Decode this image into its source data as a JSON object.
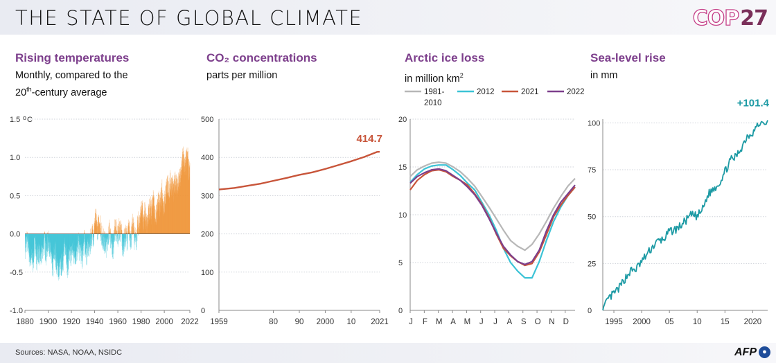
{
  "header": {
    "title": "THE STATE OF GLOBAL CLIMATE",
    "logo_text": "COP",
    "logo_number": "27"
  },
  "footer": {
    "sources": "Sources: NASA, NOAA, NSIDC",
    "agency": "AFP"
  },
  "colors": {
    "accent_title": "#7d3f8c",
    "warm": "#f0963a",
    "cold": "#3cc3d6",
    "co2": "#c8553a",
    "base_1981_2010": "#b7b7b7",
    "y2012": "#3cc3d6",
    "y2021": "#c8553a",
    "y2022": "#7d3f8c",
    "sea": "#1c9aa4"
  },
  "panels": [
    {
      "title": "Rising temperatures",
      "subtitle_line1": "Monthly, compared to the",
      "subtitle_line2_pre": "20",
      "subtitle_line2_sup": "th",
      "subtitle_line2_post": "-century average"
    },
    {
      "title": "CO₂ concentrations",
      "subtitle": "parts per million"
    },
    {
      "title": "Arctic ice loss",
      "subtitle_pre": "in million km",
      "subtitle_sup": "2"
    },
    {
      "title": "Sea-level rise",
      "subtitle": "in mm"
    }
  ],
  "chart_data": [
    {
      "type": "bar",
      "title": "Rising temperatures",
      "unit": "°C",
      "x_ticks": [
        "1880",
        "1900",
        "1920",
        "1940",
        "1960",
        "1980",
        "2000",
        "2022"
      ],
      "y_ticks": [
        "1.5",
        "1.0",
        "0.5",
        "0.0",
        "-0.5",
        "-1.0"
      ],
      "ylim": [
        -1.0,
        1.5
      ],
      "xlim": [
        1880,
        2022
      ],
      "annual_anomaly": [
        [
          1880,
          -0.17
        ],
        [
          1881,
          -0.09
        ],
        [
          1882,
          -0.11
        ],
        [
          1883,
          -0.17
        ],
        [
          1884,
          -0.28
        ],
        [
          1885,
          -0.33
        ],
        [
          1886,
          -0.31
        ],
        [
          1887,
          -0.36
        ],
        [
          1888,
          -0.18
        ],
        [
          1889,
          -0.11
        ],
        [
          1890,
          -0.35
        ],
        [
          1891,
          -0.22
        ],
        [
          1892,
          -0.27
        ],
        [
          1893,
          -0.31
        ],
        [
          1894,
          -0.3
        ],
        [
          1895,
          -0.22
        ],
        [
          1896,
          -0.11
        ],
        [
          1897,
          -0.11
        ],
        [
          1898,
          -0.27
        ],
        [
          1899,
          -0.17
        ],
        [
          1900,
          -0.08
        ],
        [
          1901,
          -0.15
        ],
        [
          1902,
          -0.28
        ],
        [
          1903,
          -0.37
        ],
        [
          1904,
          -0.47
        ],
        [
          1905,
          -0.26
        ],
        [
          1906,
          -0.22
        ],
        [
          1907,
          -0.39
        ],
        [
          1908,
          -0.43
        ],
        [
          1909,
          -0.48
        ],
        [
          1910,
          -0.43
        ],
        [
          1911,
          -0.44
        ],
        [
          1912,
          -0.36
        ],
        [
          1913,
          -0.34
        ],
        [
          1914,
          -0.15
        ],
        [
          1915,
          -0.14
        ],
        [
          1916,
          -0.36
        ],
        [
          1917,
          -0.46
        ],
        [
          1918,
          -0.3
        ],
        [
          1919,
          -0.27
        ],
        [
          1920,
          -0.27
        ],
        [
          1921,
          -0.19
        ],
        [
          1922,
          -0.28
        ],
        [
          1923,
          -0.26
        ],
        [
          1924,
          -0.27
        ],
        [
          1925,
          -0.22
        ],
        [
          1926,
          -0.1
        ],
        [
          1927,
          -0.21
        ],
        [
          1928,
          -0.2
        ],
        [
          1929,
          -0.36
        ],
        [
          1930,
          -0.16
        ],
        [
          1931,
          -0.09
        ],
        [
          1932,
          -0.16
        ],
        [
          1933,
          -0.29
        ],
        [
          1934,
          -0.13
        ],
        [
          1935,
          -0.2
        ],
        [
          1936,
          -0.15
        ],
        [
          1937,
          -0.03
        ],
        [
          1938,
          0.0
        ],
        [
          1939,
          -0.02
        ],
        [
          1940,
          0.13
        ],
        [
          1941,
          0.19
        ],
        [
          1942,
          0.07
        ],
        [
          1943,
          0.09
        ],
        [
          1944,
          0.2
        ],
        [
          1945,
          0.09
        ],
        [
          1946,
          -0.07
        ],
        [
          1947,
          -0.03
        ],
        [
          1948,
          -0.11
        ],
        [
          1949,
          -0.11
        ],
        [
          1950,
          -0.17
        ],
        [
          1951,
          -0.07
        ],
        [
          1952,
          0.01
        ],
        [
          1953,
          0.08
        ],
        [
          1954,
          -0.13
        ],
        [
          1955,
          -0.14
        ],
        [
          1956,
          -0.19
        ],
        [
          1957,
          0.05
        ],
        [
          1958,
          0.06
        ],
        [
          1959,
          0.03
        ],
        [
          1960,
          -0.03
        ],
        [
          1961,
          0.06
        ],
        [
          1962,
          0.03
        ],
        [
          1963,
          0.05
        ],
        [
          1964,
          -0.2
        ],
        [
          1965,
          -0.11
        ],
        [
          1966,
          -0.06
        ],
        [
          1967,
          -0.02
        ],
        [
          1968,
          -0.08
        ],
        [
          1969,
          0.05
        ],
        [
          1970,
          0.03
        ],
        [
          1971,
          -0.08
        ],
        [
          1972,
          0.01
        ],
        [
          1973,
          0.16
        ],
        [
          1974,
          -0.07
        ],
        [
          1975,
          -0.01
        ],
        [
          1976,
          -0.1
        ],
        [
          1977,
          0.18
        ],
        [
          1978,
          0.07
        ],
        [
          1979,
          0.16
        ],
        [
          1980,
          0.26
        ],
        [
          1981,
          0.32
        ],
        [
          1982,
          0.14
        ],
        [
          1983,
          0.31
        ],
        [
          1984,
          0.16
        ],
        [
          1985,
          0.12
        ],
        [
          1986,
          0.18
        ],
        [
          1987,
          0.32
        ],
        [
          1988,
          0.39
        ],
        [
          1989,
          0.27
        ],
        [
          1990,
          0.45
        ],
        [
          1991,
          0.41
        ],
        [
          1992,
          0.22
        ],
        [
          1993,
          0.23
        ],
        [
          1994,
          0.32
        ],
        [
          1995,
          0.45
        ],
        [
          1996,
          0.33
        ],
        [
          1997,
          0.46
        ],
        [
          1998,
          0.61
        ],
        [
          1999,
          0.38
        ],
        [
          2000,
          0.39
        ],
        [
          2001,
          0.54
        ],
        [
          2002,
          0.63
        ],
        [
          2003,
          0.62
        ],
        [
          2004,
          0.53
        ],
        [
          2005,
          0.68
        ],
        [
          2006,
          0.64
        ],
        [
          2007,
          0.66
        ],
        [
          2008,
          0.54
        ],
        [
          2009,
          0.65
        ],
        [
          2010,
          0.72
        ],
        [
          2011,
          0.61
        ],
        [
          2012,
          0.65
        ],
        [
          2013,
          0.68
        ],
        [
          2014,
          0.75
        ],
        [
          2015,
          0.9
        ],
        [
          2016,
          1.01
        ],
        [
          2017,
          0.92
        ],
        [
          2018,
          0.85
        ],
        [
          2019,
          0.98
        ],
        [
          2020,
          1.02
        ],
        [
          2021,
          0.85
        ],
        [
          2022,
          0.89
        ]
      ]
    },
    {
      "type": "line",
      "title": "CO₂ concentrations",
      "unit": "parts per million",
      "x_ticks": [
        "1959",
        "80",
        "90",
        "2000",
        "10",
        "2021"
      ],
      "y_ticks": [
        "500",
        "400",
        "300",
        "200",
        "100",
        "0"
      ],
      "xlim": [
        1959,
        2021
      ],
      "ylim": [
        0,
        500
      ],
      "end_label": "414.7",
      "points": [
        [
          1959,
          315.98
        ],
        [
          1965,
          320.04
        ],
        [
          1970,
          325.68
        ],
        [
          1975,
          331.11
        ],
        [
          1980,
          338.76
        ],
        [
          1985,
          346.12
        ],
        [
          1990,
          354.39
        ],
        [
          1995,
          360.82
        ],
        [
          2000,
          369.71
        ],
        [
          2005,
          379.8
        ],
        [
          2010,
          389.9
        ],
        [
          2015,
          401.01
        ],
        [
          2020,
          414.24
        ],
        [
          2021,
          414.7
        ]
      ]
    },
    {
      "type": "line",
      "title": "Arctic ice loss",
      "unit": "million km²",
      "x_ticks": [
        "J",
        "F",
        "M",
        "A",
        "M",
        "J",
        "J",
        "A",
        "S",
        "O",
        "N",
        "D"
      ],
      "y_ticks": [
        "20",
        "15",
        "10",
        "5",
        "0"
      ],
      "ylim": [
        0,
        20
      ],
      "legend": "top",
      "series": [
        {
          "name": "1981-2010",
          "values": [
            [
              0,
              14.0
            ],
            [
              0.5,
              14.7
            ],
            [
              1,
              15.1
            ],
            [
              1.5,
              15.4
            ],
            [
              2,
              15.5
            ],
            [
              2.5,
              15.4
            ],
            [
              3,
              15.0
            ],
            [
              3.5,
              14.5
            ],
            [
              4,
              13.8
            ],
            [
              4.5,
              13.0
            ],
            [
              5,
              11.9
            ],
            [
              5.5,
              10.8
            ],
            [
              6,
              9.6
            ],
            [
              6.5,
              8.4
            ],
            [
              7,
              7.3
            ],
            [
              7.5,
              6.7
            ],
            [
              8,
              6.3
            ],
            [
              8.5,
              6.9
            ],
            [
              9,
              8.0
            ],
            [
              9.5,
              9.3
            ],
            [
              10,
              10.7
            ],
            [
              10.5,
              11.9
            ],
            [
              11,
              13.0
            ],
            [
              11.5,
              13.8
            ]
          ]
        },
        {
          "name": "2012",
          "values": [
            [
              0,
              13.4
            ],
            [
              0.5,
              14.2
            ],
            [
              1,
              14.8
            ],
            [
              1.5,
              15.1
            ],
            [
              2,
              15.2
            ],
            [
              2.5,
              15.2
            ],
            [
              3,
              14.7
            ],
            [
              3.5,
              14.1
            ],
            [
              4,
              13.3
            ],
            [
              4.5,
              12.6
            ],
            [
              5,
              11.3
            ],
            [
              5.5,
              10.0
            ],
            [
              6,
              8.4
            ],
            [
              6.5,
              6.5
            ],
            [
              7,
              5.0
            ],
            [
              7.5,
              4.1
            ],
            [
              8,
              3.4
            ],
            [
              8.5,
              3.4
            ],
            [
              9,
              5.1
            ],
            [
              9.5,
              7.3
            ],
            [
              10,
              9.3
            ],
            [
              10.5,
              10.8
            ],
            [
              11,
              12.0
            ],
            [
              11.5,
              12.9
            ]
          ]
        },
        {
          "name": "2021",
          "values": [
            [
              0,
              12.6
            ],
            [
              0.5,
              13.6
            ],
            [
              1,
              14.2
            ],
            [
              1.5,
              14.6
            ],
            [
              2,
              14.7
            ],
            [
              2.5,
              14.5
            ],
            [
              3,
              14.0
            ],
            [
              3.5,
              13.6
            ],
            [
              4,
              13.1
            ],
            [
              4.5,
              12.2
            ],
            [
              5,
              11.1
            ],
            [
              5.5,
              9.7
            ],
            [
              6,
              8.0
            ],
            [
              6.5,
              6.5
            ],
            [
              7,
              5.7
            ],
            [
              7.5,
              5.1
            ],
            [
              8,
              4.7
            ],
            [
              8.5,
              4.9
            ],
            [
              9,
              6.1
            ],
            [
              9.5,
              7.9
            ],
            [
              10,
              9.8
            ],
            [
              10.5,
              11.0
            ],
            [
              11,
              12.0
            ],
            [
              11.5,
              12.9
            ]
          ]
        },
        {
          "name": "2022",
          "values": [
            [
              0,
              13.3
            ],
            [
              0.5,
              14.0
            ],
            [
              1,
              14.4
            ],
            [
              1.5,
              14.7
            ],
            [
              2,
              14.8
            ],
            [
              2.5,
              14.6
            ],
            [
              3,
              14.1
            ],
            [
              3.5,
              13.6
            ],
            [
              4,
              12.9
            ],
            [
              4.5,
              12.1
            ],
            [
              5,
              11.0
            ],
            [
              5.5,
              9.6
            ],
            [
              6,
              8.1
            ],
            [
              6.5,
              6.7
            ],
            [
              7,
              5.8
            ],
            [
              7.5,
              5.1
            ],
            [
              8,
              4.8
            ],
            [
              8.5,
              5.1
            ],
            [
              9,
              6.3
            ],
            [
              9.5,
              8.3
            ],
            [
              10,
              10.0
            ],
            [
              10.5,
              11.3
            ],
            [
              11,
              12.2
            ],
            [
              11.5,
              13.1
            ]
          ]
        }
      ]
    },
    {
      "type": "line",
      "title": "Sea-level rise",
      "unit": "mm",
      "x_ticks": [
        "1995",
        "2000",
        "05",
        "10",
        "15",
        "2020"
      ],
      "y_ticks": [
        "100",
        "75",
        "50",
        "25",
        "0"
      ],
      "xlim": [
        1993,
        2022.7
      ],
      "ylim": [
        0,
        102
      ],
      "end_label": "+101.4",
      "points": [
        [
          1993.0,
          0
        ],
        [
          1994.0,
          6
        ],
        [
          1995.0,
          9
        ],
        [
          1996.0,
          12
        ],
        [
          1997.0,
          17
        ],
        [
          1998.0,
          21
        ],
        [
          1999.0,
          22
        ],
        [
          2000.0,
          26
        ],
        [
          2001.0,
          30
        ],
        [
          2002.0,
          34
        ],
        [
          2003.0,
          37
        ],
        [
          2004.0,
          38
        ],
        [
          2005.0,
          42
        ],
        [
          2006.0,
          43
        ],
        [
          2007.0,
          45
        ],
        [
          2008.0,
          48
        ],
        [
          2009.0,
          51
        ],
        [
          2010.0,
          50
        ],
        [
          2011.0,
          54
        ],
        [
          2012.0,
          62
        ],
        [
          2013.0,
          65
        ],
        [
          2014.0,
          68
        ],
        [
          2015.0,
          74
        ],
        [
          2016.0,
          80
        ],
        [
          2017.0,
          82
        ],
        [
          2018.0,
          87
        ],
        [
          2019.0,
          93
        ],
        [
          2020.0,
          95
        ],
        [
          2021.0,
          99
        ],
        [
          2022.7,
          101.4
        ]
      ]
    }
  ]
}
